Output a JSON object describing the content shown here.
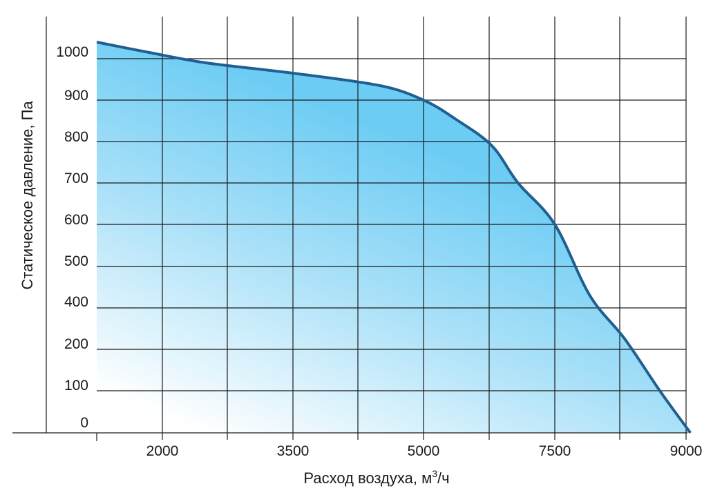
{
  "chart_data": {
    "type": "area",
    "xlabel": "Расход воздуха, м",
    "xlabel_sup": "3",
    "xlabel_tail": "/ч",
    "ylabel": "Статическое давление, Па",
    "x_tick_labels": [
      "2000",
      "3500",
      "5000",
      "7500",
      "9000"
    ],
    "y_tick_labels": [
      "0",
      "100",
      "200",
      "400",
      "500",
      "600",
      "700",
      "800",
      "900",
      "1000"
    ],
    "grid": true,
    "series": [
      {
        "points": [
          {
            "x": 1000,
            "y": 1040
          },
          {
            "x": 1800,
            "y": 1015
          },
          {
            "x": 2500,
            "y": 990
          },
          {
            "x": 3500,
            "y": 965
          },
          {
            "x": 4500,
            "y": 935
          },
          {
            "x": 5000,
            "y": 900
          },
          {
            "x": 5600,
            "y": 855
          },
          {
            "x": 6300,
            "y": 790
          },
          {
            "x": 6800,
            "y": 700
          },
          {
            "x": 7500,
            "y": 600
          },
          {
            "x": 7900,
            "y": 430
          },
          {
            "x": 8300,
            "y": 250
          },
          {
            "x": 8700,
            "y": 100
          },
          {
            "x": 9050,
            "y": 0
          }
        ]
      }
    ],
    "colors": {
      "line": "#1f5f91",
      "fill_dark": "#6cccf4",
      "fill_light": "#ffffff",
      "grid": "#1a1a1a"
    }
  }
}
